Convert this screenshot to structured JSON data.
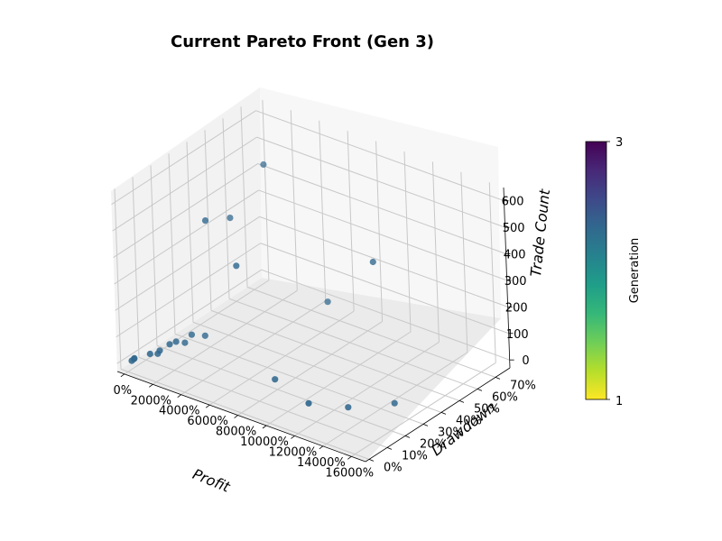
{
  "chart_data": {
    "type": "scatter",
    "title": "Current Pareto Front (Gen 3)",
    "xlabel": "Profit",
    "ylabel": "Drawdown",
    "zlabel": "Trade Count",
    "x_ticks": [
      "0%",
      "2000%",
      "4000%",
      "6000%",
      "8000%",
      "10000%",
      "12000%",
      "14000%",
      "16000%"
    ],
    "y_ticks": [
      "0%",
      "10%",
      "20%",
      "30%",
      "40%",
      "50%",
      "60%",
      "70%"
    ],
    "z_ticks": [
      "0",
      "100",
      "200",
      "300",
      "400",
      "500",
      "600"
    ],
    "xlim": [
      -500,
      17000
    ],
    "ylim": [
      -2,
      78
    ],
    "zlim": [
      -30,
      650
    ],
    "grid": true,
    "colorbar": {
      "label": "Generation",
      "min_label": "1",
      "max_label": "3",
      "colormap": "viridis_r",
      "colors": [
        "#fde725",
        "#b5de2b",
        "#6ece58",
        "#35b779",
        "#1f9e89",
        "#26828e",
        "#31688e",
        "#3e4989",
        "#482878",
        "#440154"
      ]
    },
    "point_color": "#31688e",
    "points": [
      {
        "x": 30,
        "y": 2,
        "z": 3
      },
      {
        "x": 60,
        "y": 3,
        "z": 6
      },
      {
        "x": 90,
        "y": 3,
        "z": 9
      },
      {
        "x": 700,
        "y": 7,
        "z": 20
      },
      {
        "x": 850,
        "y": 10,
        "z": 10
      },
      {
        "x": 1000,
        "y": 10,
        "z": 25
      },
      {
        "x": 1200,
        "y": 14,
        "z": 35
      },
      {
        "x": 1400,
        "y": 16,
        "z": 40
      },
      {
        "x": 1500,
        "y": 20,
        "z": 20
      },
      {
        "x": 2000,
        "y": 20,
        "z": 60
      },
      {
        "x": 2300,
        "y": 25,
        "z": 40
      },
      {
        "x": 2400,
        "y": 40,
        "z": 420
      },
      {
        "x": 2600,
        "y": 25,
        "z": 480
      },
      {
        "x": 3600,
        "y": 50,
        "z": 600
      },
      {
        "x": 4700,
        "y": 25,
        "z": 350
      },
      {
        "x": 8500,
        "y": 45,
        "z": 200
      },
      {
        "x": 8500,
        "y": 15,
        "z": 40
      },
      {
        "x": 11500,
        "y": 10,
        "z": 30
      },
      {
        "x": 12500,
        "y": 40,
        "z": 450
      },
      {
        "x": 13000,
        "y": 20,
        "z": 0
      },
      {
        "x": 15000,
        "y": 30,
        "z": 10
      }
    ]
  }
}
